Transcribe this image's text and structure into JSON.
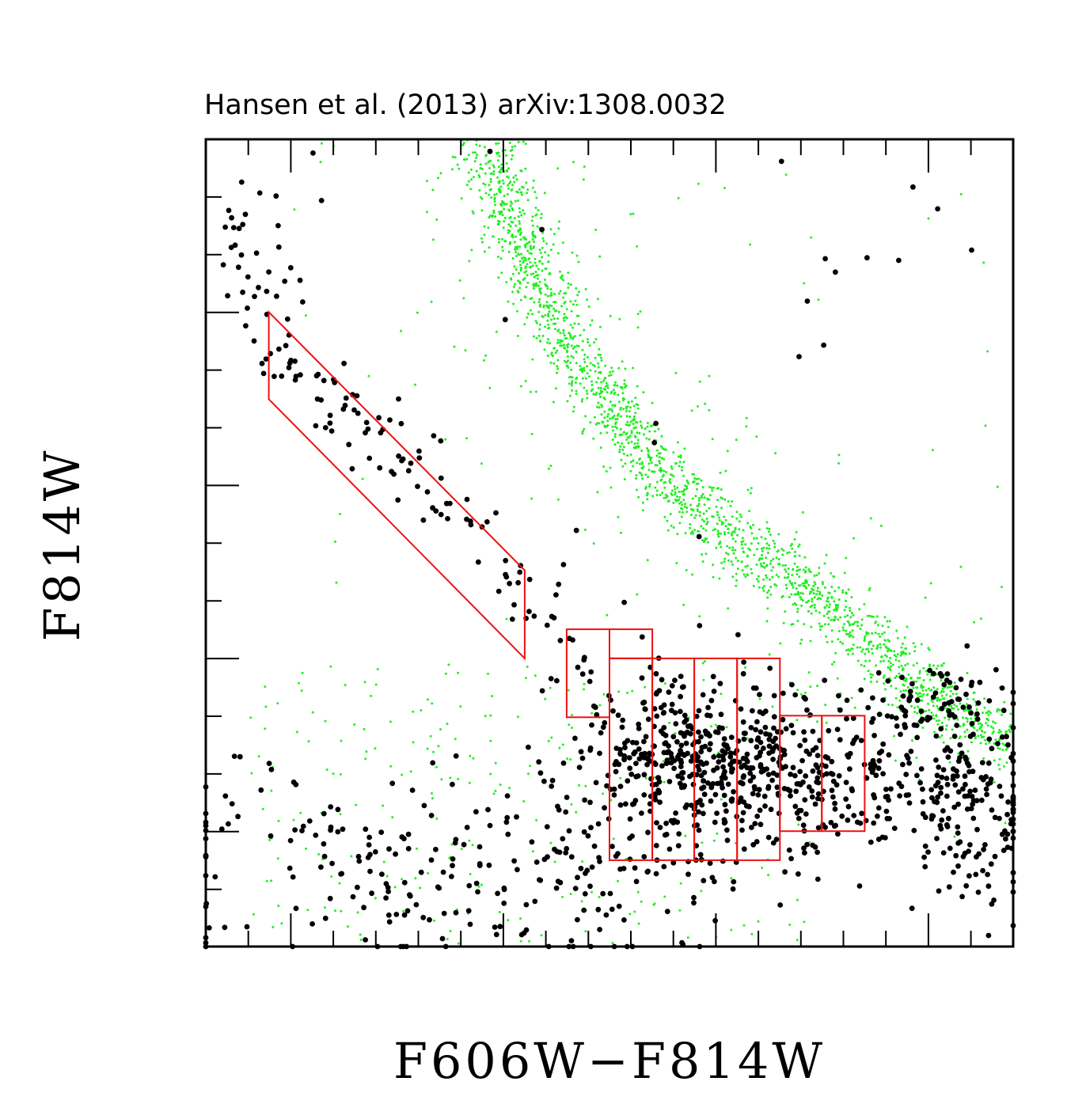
{
  "caption": "Hansen et al. (2013) arXiv:1308.0032",
  "chart_data": {
    "type": "scatter",
    "title": "",
    "xlabel": "F606W−F814W",
    "ylabel": "F814W",
    "xlim": [
      0,
      1
    ],
    "ylim": [
      0,
      1
    ],
    "y_inverted": true,
    "grid": false,
    "tick_labels": "none",
    "colors": {
      "white_dwarfs_black": "#000000",
      "field_green": "#22ee22",
      "selection_red": "#ee1111"
    },
    "selection_regions": [
      {
        "name": "white-dwarf-cooling-sequence-box",
        "polygon": [
          [
            0.078,
            0.786
          ],
          [
            0.395,
            0.466
          ],
          [
            0.395,
            0.357
          ],
          [
            0.078,
            0.678
          ]
        ]
      },
      {
        "name": "grid-box",
        "rect": [
          0.447,
          0.284,
          0.5,
          0.393
        ]
      },
      {
        "name": "grid-box",
        "rect": [
          0.5,
          0.357,
          0.553,
          0.393
        ]
      },
      {
        "name": "grid-box",
        "rect": [
          0.5,
          0.107,
          0.553,
          0.357
        ]
      },
      {
        "name": "grid-box",
        "rect": [
          0.553,
          0.107,
          0.605,
          0.357
        ]
      },
      {
        "name": "grid-box",
        "rect": [
          0.605,
          0.107,
          0.658,
          0.357
        ]
      },
      {
        "name": "grid-box",
        "rect": [
          0.658,
          0.107,
          0.711,
          0.357
        ]
      },
      {
        "name": "grid-box",
        "rect": [
          0.711,
          0.143,
          0.763,
          0.286
        ]
      },
      {
        "name": "grid-box",
        "rect": [
          0.763,
          0.143,
          0.816,
          0.286
        ]
      }
    ],
    "series": [
      {
        "marker": "large-black-dot",
        "components": [
          {
            "kind": "band",
            "n": 130,
            "path": [
              [
                0.03,
                0.93
              ],
              [
                0.09,
                0.73
              ],
              [
                0.2,
                0.64
              ],
              [
                0.31,
                0.54
              ],
              [
                0.39,
                0.45
              ],
              [
                0.44,
                0.39
              ]
            ],
            "width": 0.02
          },
          {
            "kind": "cloud",
            "n": 380,
            "center": [
              0.66,
              0.21
            ],
            "spread": [
              0.09,
              0.045
            ]
          },
          {
            "kind": "cloud",
            "n": 190,
            "center": [
              0.58,
              0.27
            ],
            "spread": [
              0.08,
              0.05
            ]
          },
          {
            "kind": "cloud",
            "n": 150,
            "center": [
              0.88,
              0.2
            ],
            "spread": [
              0.07,
              0.05
            ]
          },
          {
            "kind": "cloud",
            "n": 90,
            "center": [
              0.95,
              0.16
            ],
            "spread": [
              0.04,
              0.06
            ]
          },
          {
            "kind": "cloud",
            "n": 70,
            "center": [
              0.9,
              0.3
            ],
            "spread": [
              0.06,
              0.03
            ]
          },
          {
            "kind": "cloud",
            "n": 260,
            "center": [
              0.37,
              0.1
            ],
            "spread": [
              0.19,
              0.06
            ]
          },
          {
            "kind": "scatter",
            "n": 26,
            "bounds": [
              0.0,
              1.0,
              0.45,
              1.0
            ]
          }
        ]
      },
      {
        "marker": "small-green-dot",
        "components": [
          {
            "kind": "band",
            "n": 1900,
            "path": [
              [
                0.34,
                1.0
              ],
              [
                0.41,
                0.82
              ],
              [
                0.47,
                0.72
              ],
              [
                0.55,
                0.6
              ],
              [
                0.66,
                0.5
              ],
              [
                0.74,
                0.44
              ],
              [
                0.83,
                0.37
              ],
              [
                0.91,
                0.3
              ],
              [
                1.0,
                0.25
              ]
            ],
            "width": 0.02
          },
          {
            "kind": "band",
            "n": 280,
            "path": [
              [
                0.34,
                1.0
              ],
              [
                0.41,
                0.82
              ],
              [
                0.47,
                0.72
              ],
              [
                0.55,
                0.6
              ],
              [
                0.66,
                0.5
              ],
              [
                0.74,
                0.44
              ],
              [
                0.83,
                0.37
              ],
              [
                0.91,
                0.3
              ],
              [
                1.0,
                0.25
              ]
            ],
            "width": 0.07
          },
          {
            "kind": "scatter",
            "n": 260,
            "bounds": [
              0.05,
              0.75,
              0.0,
              0.35
            ]
          },
          {
            "kind": "scatter",
            "n": 55,
            "bounds": [
              0.1,
              1.0,
              0.4,
              1.0
            ]
          }
        ]
      }
    ]
  }
}
